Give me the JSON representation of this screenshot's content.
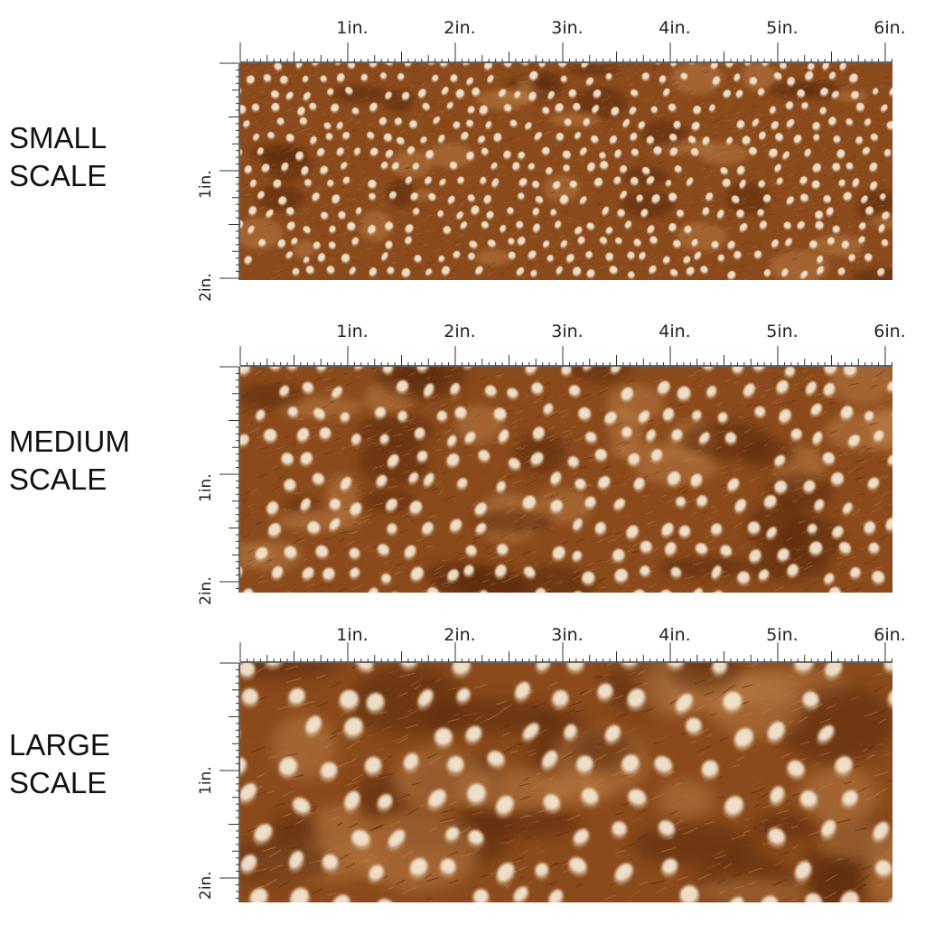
{
  "ruler": {
    "top_labels": [
      "1in.",
      "2in.",
      "3in.",
      "4in.",
      "5in.",
      "6in."
    ],
    "side_labels": [
      "1in.",
      "2in."
    ]
  },
  "panels": [
    {
      "line1": "SMALL",
      "line2": "SCALE",
      "spot_scale": 0.55
    },
    {
      "line1": "MEDIUM",
      "line2": "SCALE",
      "spot_scale": 0.85
    },
    {
      "line1": "LARGE",
      "line2": "SCALE",
      "spot_scale": 1.25
    }
  ],
  "colors": {
    "fur_dark": "#5a2a0c",
    "fur_mid": "#8a4a1c",
    "fur_light": "#b87a44",
    "spot": "#f4e6d2",
    "spot_shadow": "#d8b48c",
    "ruler": "#333333"
  }
}
